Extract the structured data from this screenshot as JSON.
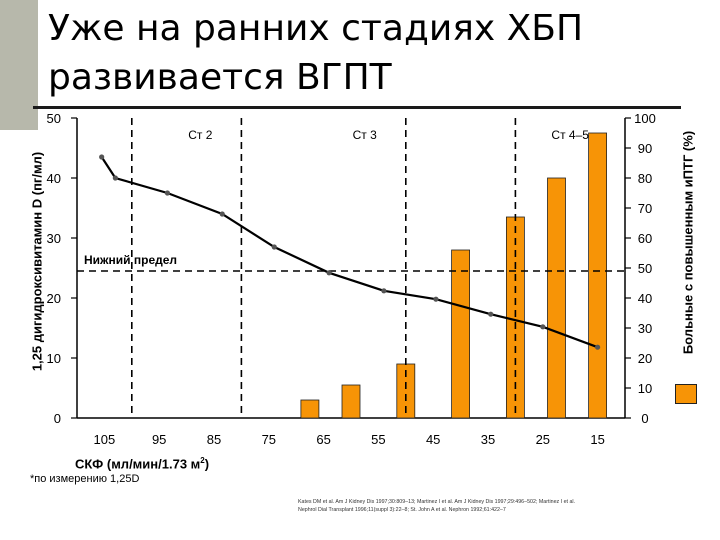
{
  "slide": {
    "title_line1": "Уже на ранних стадиях ХБП",
    "title_line2": "развивается ВГПТ",
    "footnote": "*по измерению 1,25D",
    "references": "Kates DM et al. Am J Kidney Dis 1997;30:809–13; Martinez I et al. Am J Kidney Dis 1997;29:496–502; Martinez I et al. Nephrol Dial Transplant 1996;11(suppl 3):22–8; St. John A et al. Nephron 1992;61:422–7",
    "accent_color": "#f79406",
    "sidebar_color": "#b7b8ab"
  },
  "chart_data": {
    "type": "bar+line",
    "xlabel": "СКФ (мл/мин/1.73 м",
    "xlabel_sup": "2",
    "xlabel_close": ")",
    "xticks": [
      "105",
      "95",
      "85",
      "75",
      "65",
      "55",
      "45",
      "35",
      "25",
      "15"
    ],
    "xlim": [
      110,
      10
    ],
    "y_left": {
      "label": "1,25 дигидроксивитамин D (пг/мл)",
      "ticks": [
        0,
        10,
        20,
        30,
        40,
        50
      ],
      "ylim": [
        0,
        50
      ]
    },
    "y_right": {
      "label": "Больные с повышенным иПТГ (%)",
      "ticks": [
        0,
        10,
        20,
        30,
        40,
        50,
        60,
        70,
        80,
        90,
        100
      ],
      "ylim": [
        0,
        100
      ]
    },
    "stage_lines": [
      {
        "x": 100,
        "label": ""
      },
      {
        "x": 80,
        "label": "Ст 2"
      },
      {
        "x": 50,
        "label": "Ст 3"
      },
      {
        "x": 30,
        "label": "Ст 4–5"
      }
    ],
    "stage_label_positions": [
      87.5,
      57.5,
      20
    ],
    "reference_line": {
      "y": 24.5,
      "label": "Нижний предел"
    },
    "bars": {
      "name": "Больные с повышенным иПТГ (%)",
      "color": "#f79406",
      "x": [
        67.5,
        60,
        50,
        40,
        30,
        22.5,
        15
      ],
      "values": [
        6,
        11,
        18,
        56,
        67,
        80,
        95
      ]
    },
    "line": {
      "name": "1,25 дигидроксивитамин D (пг/мл)",
      "color": "#000000",
      "x": [
        105.5,
        103,
        93.5,
        83.5,
        74,
        64,
        54,
        44.5,
        34.5,
        25,
        15
      ],
      "values": [
        43.5,
        40,
        37.5,
        34,
        28.5,
        24.2,
        21.2,
        19.8,
        17.3,
        15.2,
        11.8
      ]
    }
  }
}
